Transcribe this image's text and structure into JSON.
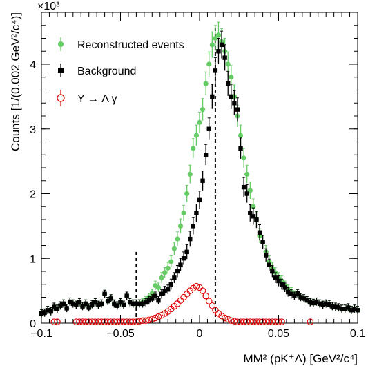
{
  "chart_data": {
    "type": "scatter",
    "title": "",
    "xlabel": "MM² (pK⁺Λ) [GeV²/c⁴]",
    "ylabel": "Counts [1/(0.002 GeV²/c⁴)]",
    "y_multiplier_label": "×10³",
    "xlim": [
      -0.1,
      0.1
    ],
    "ylim": [
      0,
      4800
    ],
    "x_ticks": [
      -0.1,
      -0.05,
      0,
      0.05,
      0.1
    ],
    "x_tick_labels": [
      "−0.1",
      "−0.05",
      "0",
      "0.05",
      "0.1"
    ],
    "y_ticks": [
      0,
      1000,
      2000,
      3000,
      4000
    ],
    "y_tick_labels": [
      "0",
      "1",
      "2",
      "3",
      "4"
    ],
    "grid": false,
    "legend_position": "top-left",
    "cut_lines": [
      {
        "x": -0.04,
        "y_top": 1100
      },
      {
        "x": 0.01,
        "y_top": 4600
      }
    ],
    "series": [
      {
        "name": "Reconstructed events",
        "color": "#66cc66",
        "marker": "filled-circle",
        "x": [
          -0.1,
          -0.098,
          -0.096,
          -0.094,
          -0.092,
          -0.09,
          -0.088,
          -0.086,
          -0.084,
          -0.082,
          -0.08,
          -0.078,
          -0.076,
          -0.074,
          -0.072,
          -0.07,
          -0.068,
          -0.066,
          -0.064,
          -0.062,
          -0.06,
          -0.058,
          -0.056,
          -0.054,
          -0.052,
          -0.05,
          -0.048,
          -0.046,
          -0.044,
          -0.042,
          -0.04,
          -0.038,
          -0.036,
          -0.034,
          -0.032,
          -0.03,
          -0.028,
          -0.026,
          -0.024,
          -0.022,
          -0.02,
          -0.018,
          -0.016,
          -0.014,
          -0.012,
          -0.01,
          -0.008,
          -0.006,
          -0.004,
          -0.002,
          0,
          0.002,
          0.004,
          0.006,
          0.008,
          0.01,
          0.012,
          0.014,
          0.016,
          0.018,
          0.02,
          0.022,
          0.024,
          0.026,
          0.028,
          0.03,
          0.032,
          0.034,
          0.036,
          0.038,
          0.04,
          0.042,
          0.044,
          0.046,
          0.048,
          0.05,
          0.052,
          0.054,
          0.056,
          0.058,
          0.06,
          0.062,
          0.064,
          0.066,
          0.068,
          0.07,
          0.072,
          0.074,
          0.076,
          0.078,
          0.08,
          0.082,
          0.084,
          0.086,
          0.088,
          0.09,
          0.092,
          0.094,
          0.096,
          0.098,
          0.1
        ],
        "y": [
          150,
          160,
          200,
          180,
          250,
          220,
          270,
          300,
          230,
          330,
          300,
          280,
          320,
          260,
          300,
          240,
          290,
          320,
          280,
          300,
          450,
          340,
          380,
          300,
          270,
          320,
          280,
          420,
          320,
          300,
          300,
          300,
          320,
          350,
          400,
          460,
          580,
          550,
          700,
          780,
          850,
          950,
          1150,
          1300,
          1500,
          1700,
          2000,
          2300,
          2700,
          2900,
          3100,
          3300,
          3700,
          4000,
          4300,
          4400,
          4450,
          4350,
          4200,
          4000,
          3800,
          3500,
          3200,
          2900,
          2550,
          2300,
          2050,
          1800,
          1600,
          1350,
          1250,
          1100,
          950,
          850,
          780,
          700,
          650,
          580,
          520,
          480,
          440,
          460,
          400,
          380,
          350,
          320,
          310,
          330,
          300,
          280,
          300,
          290,
          260,
          250,
          240,
          220,
          220,
          240,
          200,
          220,
          200
        ],
        "err": [
          60,
          60,
          60,
          60,
          60,
          60,
          60,
          60,
          60,
          60,
          60,
          60,
          60,
          60,
          60,
          60,
          60,
          60,
          60,
          60,
          60,
          60,
          60,
          60,
          60,
          60,
          60,
          60,
          60,
          60,
          60,
          60,
          60,
          60,
          60,
          60,
          70,
          70,
          80,
          80,
          90,
          90,
          100,
          110,
          110,
          120,
          130,
          140,
          150,
          160,
          160,
          170,
          180,
          190,
          200,
          200,
          200,
          200,
          200,
          190,
          180,
          180,
          170,
          160,
          150,
          140,
          130,
          120,
          120,
          110,
          100,
          100,
          90,
          90,
          80,
          80,
          80,
          70,
          70,
          70,
          60,
          60,
          60,
          60,
          60,
          60,
          60,
          60,
          60,
          60,
          60,
          60,
          60,
          60,
          60,
          60,
          60,
          60,
          60,
          60,
          60
        ]
      },
      {
        "name": "Background",
        "color": "#000000",
        "marker": "filled-square",
        "x": [
          -0.1,
          -0.098,
          -0.096,
          -0.094,
          -0.092,
          -0.09,
          -0.088,
          -0.086,
          -0.084,
          -0.082,
          -0.08,
          -0.078,
          -0.076,
          -0.074,
          -0.072,
          -0.07,
          -0.068,
          -0.066,
          -0.064,
          -0.062,
          -0.06,
          -0.058,
          -0.056,
          -0.054,
          -0.052,
          -0.05,
          -0.048,
          -0.046,
          -0.044,
          -0.042,
          -0.04,
          -0.038,
          -0.036,
          -0.034,
          -0.032,
          -0.03,
          -0.028,
          -0.026,
          -0.024,
          -0.022,
          -0.02,
          -0.018,
          -0.016,
          -0.014,
          -0.012,
          -0.01,
          -0.008,
          -0.006,
          -0.004,
          -0.002,
          0,
          0.002,
          0.004,
          0.006,
          0.008,
          0.01,
          0.012,
          0.014,
          0.016,
          0.018,
          0.02,
          0.022,
          0.024,
          0.026,
          0.028,
          0.03,
          0.032,
          0.034,
          0.036,
          0.038,
          0.04,
          0.042,
          0.044,
          0.046,
          0.048,
          0.05,
          0.052,
          0.054,
          0.056,
          0.058,
          0.06,
          0.062,
          0.064,
          0.066,
          0.068,
          0.07,
          0.072,
          0.074,
          0.076,
          0.078,
          0.08,
          0.082,
          0.084,
          0.086,
          0.088,
          0.09,
          0.092,
          0.094,
          0.096,
          0.098,
          0.1
        ],
        "y": [
          150,
          160,
          200,
          180,
          250,
          220,
          270,
          300,
          230,
          330,
          300,
          280,
          320,
          260,
          300,
          240,
          290,
          320,
          280,
          300,
          450,
          340,
          380,
          300,
          270,
          320,
          280,
          420,
          320,
          300,
          300,
          300,
          300,
          320,
          350,
          380,
          420,
          350,
          450,
          500,
          520,
          600,
          700,
          800,
          900,
          1000,
          1100,
          1300,
          1500,
          1700,
          1900,
          2200,
          2600,
          3000,
          3500,
          3900,
          4200,
          4300,
          4100,
          3700,
          3500,
          3400,
          3300,
          2700,
          2100,
          2000,
          1700,
          1650,
          1600,
          1400,
          1250,
          1050,
          900,
          800,
          700,
          650,
          600,
          550,
          480,
          450,
          420,
          460,
          400,
          380,
          350,
          320,
          310,
          330,
          300,
          280,
          300,
          290,
          260,
          250,
          240,
          220,
          220,
          240,
          200,
          220,
          200
        ],
        "err": [
          60,
          60,
          60,
          60,
          60,
          60,
          60,
          60,
          60,
          60,
          60,
          60,
          60,
          60,
          60,
          60,
          60,
          60,
          60,
          60,
          60,
          60,
          60,
          60,
          60,
          60,
          60,
          60,
          60,
          60,
          60,
          60,
          60,
          60,
          60,
          60,
          60,
          60,
          70,
          70,
          70,
          80,
          80,
          90,
          100,
          100,
          110,
          120,
          130,
          140,
          140,
          150,
          160,
          170,
          190,
          200,
          200,
          210,
          200,
          190,
          190,
          190,
          180,
          160,
          150,
          140,
          130,
          130,
          130,
          120,
          110,
          100,
          90,
          90,
          80,
          80,
          80,
          70,
          70,
          70,
          60,
          60,
          60,
          60,
          60,
          60,
          60,
          60,
          60,
          60,
          60,
          60,
          60,
          60,
          60,
          60,
          60,
          60,
          60,
          60,
          60
        ]
      },
      {
        "name": "Y → Λ γ",
        "color": "#dd0000",
        "marker": "open-circle",
        "x": [
          -0.092,
          -0.09,
          -0.078,
          -0.076,
          -0.074,
          -0.072,
          -0.07,
          -0.068,
          -0.066,
          -0.064,
          -0.062,
          -0.06,
          -0.058,
          -0.056,
          -0.054,
          -0.052,
          -0.05,
          -0.048,
          -0.046,
          -0.044,
          -0.042,
          -0.04,
          -0.038,
          -0.036,
          -0.034,
          -0.032,
          -0.03,
          -0.028,
          -0.026,
          -0.024,
          -0.022,
          -0.02,
          -0.018,
          -0.016,
          -0.014,
          -0.012,
          -0.01,
          -0.008,
          -0.006,
          -0.004,
          -0.002,
          0,
          0.002,
          0.004,
          0.006,
          0.008,
          0.01,
          0.012,
          0.014,
          0.016,
          0.018,
          0.02,
          0.022,
          0.024,
          0.026,
          0.028,
          0.03,
          0.032,
          0.034,
          0.036,
          0.038,
          0.04,
          0.042,
          0.044,
          0.046,
          0.048,
          0.05,
          0.052,
          0.07
        ],
        "y": [
          20,
          20,
          20,
          20,
          20,
          20,
          20,
          20,
          20,
          20,
          20,
          20,
          20,
          20,
          20,
          20,
          20,
          20,
          20,
          20,
          20,
          20,
          30,
          40,
          40,
          50,
          60,
          80,
          100,
          120,
          150,
          180,
          220,
          260,
          300,
          350,
          400,
          450,
          500,
          540,
          570,
          550,
          500,
          420,
          340,
          270,
          200,
          150,
          110,
          80,
          60,
          40,
          30,
          20,
          20,
          20,
          20,
          20,
          20,
          20,
          20,
          20,
          20,
          20,
          20,
          20,
          20,
          20,
          20
        ]
      }
    ]
  }
}
